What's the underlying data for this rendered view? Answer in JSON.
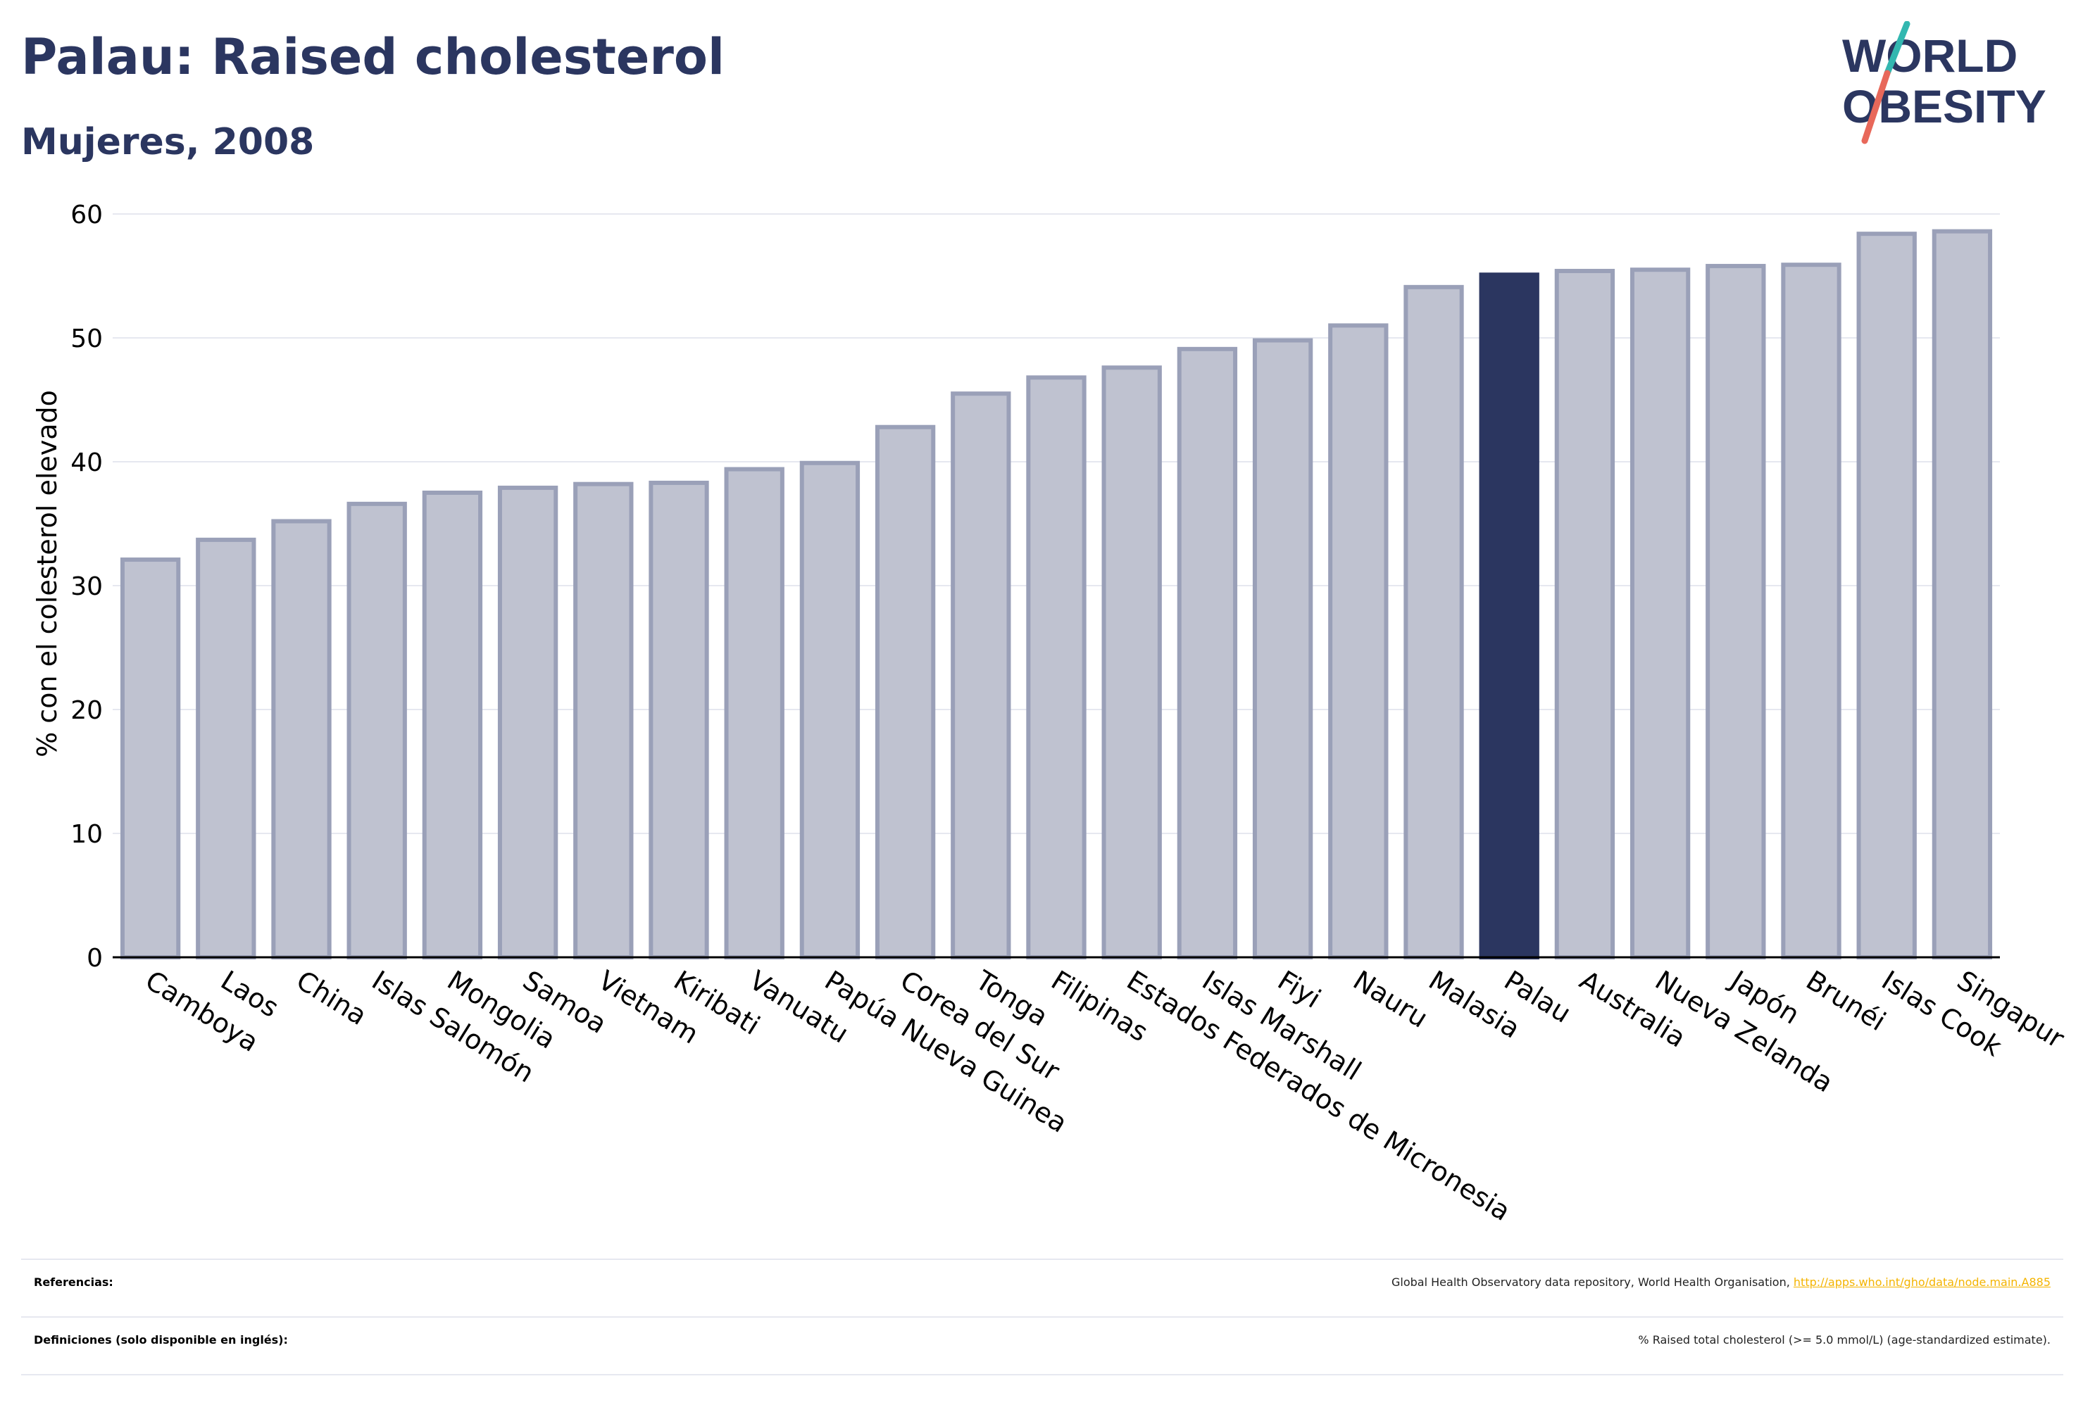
{
  "header": {
    "title": "Palau: Raised cholesterol",
    "subtitle": "Mujeres, 2008"
  },
  "logo": {
    "line1": "WORLD",
    "line2": "OBESITY",
    "colors": {
      "text": "#2b3660",
      "slash_teal": "#33b7b0",
      "slash_coral": "#e8685a"
    }
  },
  "colors": {
    "bar_default": "#bfc2d0",
    "bar_default_stroke": "#9aa0b8",
    "bar_highlight": "#2b3660",
    "grid": "#e6e8f0",
    "axis": "#000000"
  },
  "chart_data": {
    "type": "bar",
    "title": "Palau: Raised cholesterol",
    "subtitle": "Mujeres, 2008",
    "ylabel": "% con el colesterol elevado",
    "xlabel": "",
    "ylim": [
      0,
      60
    ],
    "yticks": [
      0,
      10,
      20,
      30,
      40,
      50,
      60
    ],
    "grid": true,
    "highlight": "Palau",
    "categories": [
      "Camboya",
      "Laos",
      "China",
      "Islas Salomón",
      "Mongolia",
      "Samoa",
      "Vietnam",
      "Kiribati",
      "Vanuatu",
      "Papúa Nueva Guinea",
      "Corea del Sur",
      "Tonga",
      "Filipinas",
      "Estados Federados de Micronesia",
      "Islas Marshall",
      "Fiyi",
      "Nauru",
      "Malasia",
      "Palau",
      "Australia",
      "Nueva Zelanda",
      "Japón",
      "Brunéi",
      "Islas Cook",
      "Singapur"
    ],
    "values": [
      32.1,
      33.7,
      35.2,
      36.6,
      37.5,
      37.9,
      38.2,
      38.3,
      39.4,
      39.9,
      42.8,
      45.5,
      46.8,
      47.6,
      49.1,
      49.8,
      51.0,
      54.1,
      55.1,
      55.4,
      55.5,
      55.8,
      55.9,
      58.4,
      58.6
    ]
  },
  "footer": {
    "references_label": "Referencias:",
    "references_text": "Global Health Observatory data repository, World Health Organisation, ",
    "references_link": "http://apps.who.int/gho/data/node.main.A885",
    "definitions_label": "Definiciones (solo disponible en inglés):",
    "definitions_text": "% Raised total cholesterol (>= 5.0 mmol/L) (age-standardized estimate)."
  }
}
